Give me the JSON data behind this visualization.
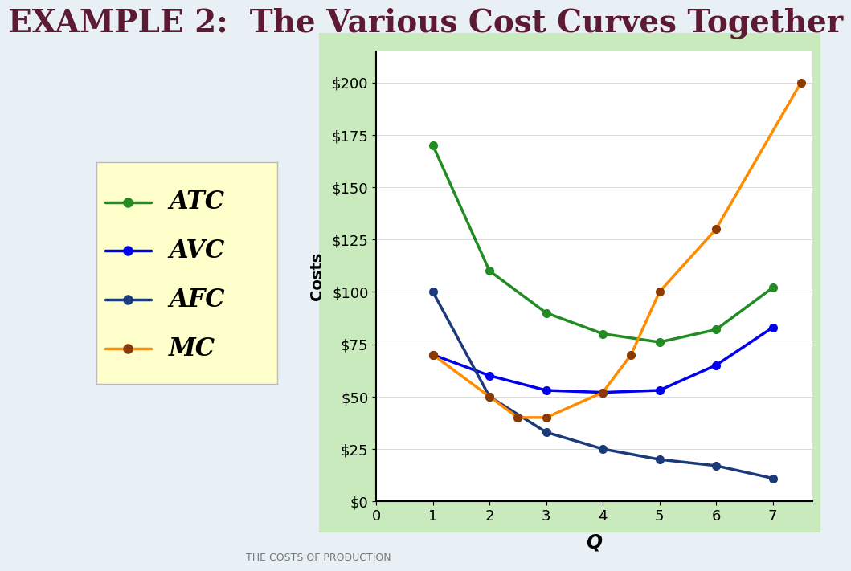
{
  "title": "EXAMPLE 2:  The Various Cost Curves Together",
  "subtitle": "THE COSTS OF PRODUCTION",
  "ylabel": "Costs",
  "xlabel": "Q",
  "xlim": [
    0,
    7.7
  ],
  "ylim": [
    0,
    215
  ],
  "yticks": [
    0,
    25,
    50,
    75,
    100,
    125,
    150,
    175,
    200
  ],
  "ytick_labels": [
    "$0",
    "$25",
    "$50",
    "$75",
    "$100",
    "$125",
    "$150",
    "$175",
    "$200"
  ],
  "xticks": [
    0,
    1,
    2,
    3,
    4,
    5,
    6,
    7
  ],
  "background_outer": "#c8eabc",
  "background_plot": "#ffffff",
  "background_page": "#e8f0f5",
  "legend_background": "#ffffcc",
  "title_color": "#5c1a33",
  "subtitle_color": "#777777",
  "ATC": {
    "x": [
      1,
      2,
      3,
      4,
      5,
      6,
      7
    ],
    "y": [
      170,
      110,
      90,
      80,
      76,
      82,
      102
    ],
    "color": "#228B22",
    "marker_color": "#228B22",
    "label": "ATC"
  },
  "AVC": {
    "x": [
      1,
      2,
      3,
      4,
      5,
      6,
      7
    ],
    "y": [
      70,
      60,
      53,
      52,
      53,
      65,
      83
    ],
    "color": "#0000EE",
    "marker_color": "#0000EE",
    "label": "AVC"
  },
  "AFC": {
    "x": [
      1,
      2,
      3,
      4,
      5,
      6,
      7
    ],
    "y": [
      100,
      50,
      33,
      25,
      20,
      17,
      11
    ],
    "color": "#1a3a7a",
    "marker_color": "#1a3a7a",
    "label": "AFC"
  },
  "MC": {
    "x": [
      1,
      2,
      2.5,
      3,
      4,
      4.5,
      5,
      6,
      7.5
    ],
    "y": [
      70,
      50,
      40,
      40,
      52,
      70,
      100,
      130,
      200
    ],
    "color": "#FF8C00",
    "marker_color": "#8B3A00",
    "label": "MC"
  },
  "curves_order": [
    "ATC",
    "AVC",
    "AFC",
    "MC"
  ],
  "legend_entries": [
    {
      "label": "ATC",
      "line_color": "#228B22",
      "marker_color": "#228B22"
    },
    {
      "label": "AVC",
      "line_color": "#0000EE",
      "marker_color": "#0000EE"
    },
    {
      "label": "AFC",
      "line_color": "#1a3a7a",
      "marker_color": "#1a3a7a"
    },
    {
      "label": "MC",
      "line_color": "#FF8C00",
      "marker_color": "#8B3A00"
    }
  ]
}
